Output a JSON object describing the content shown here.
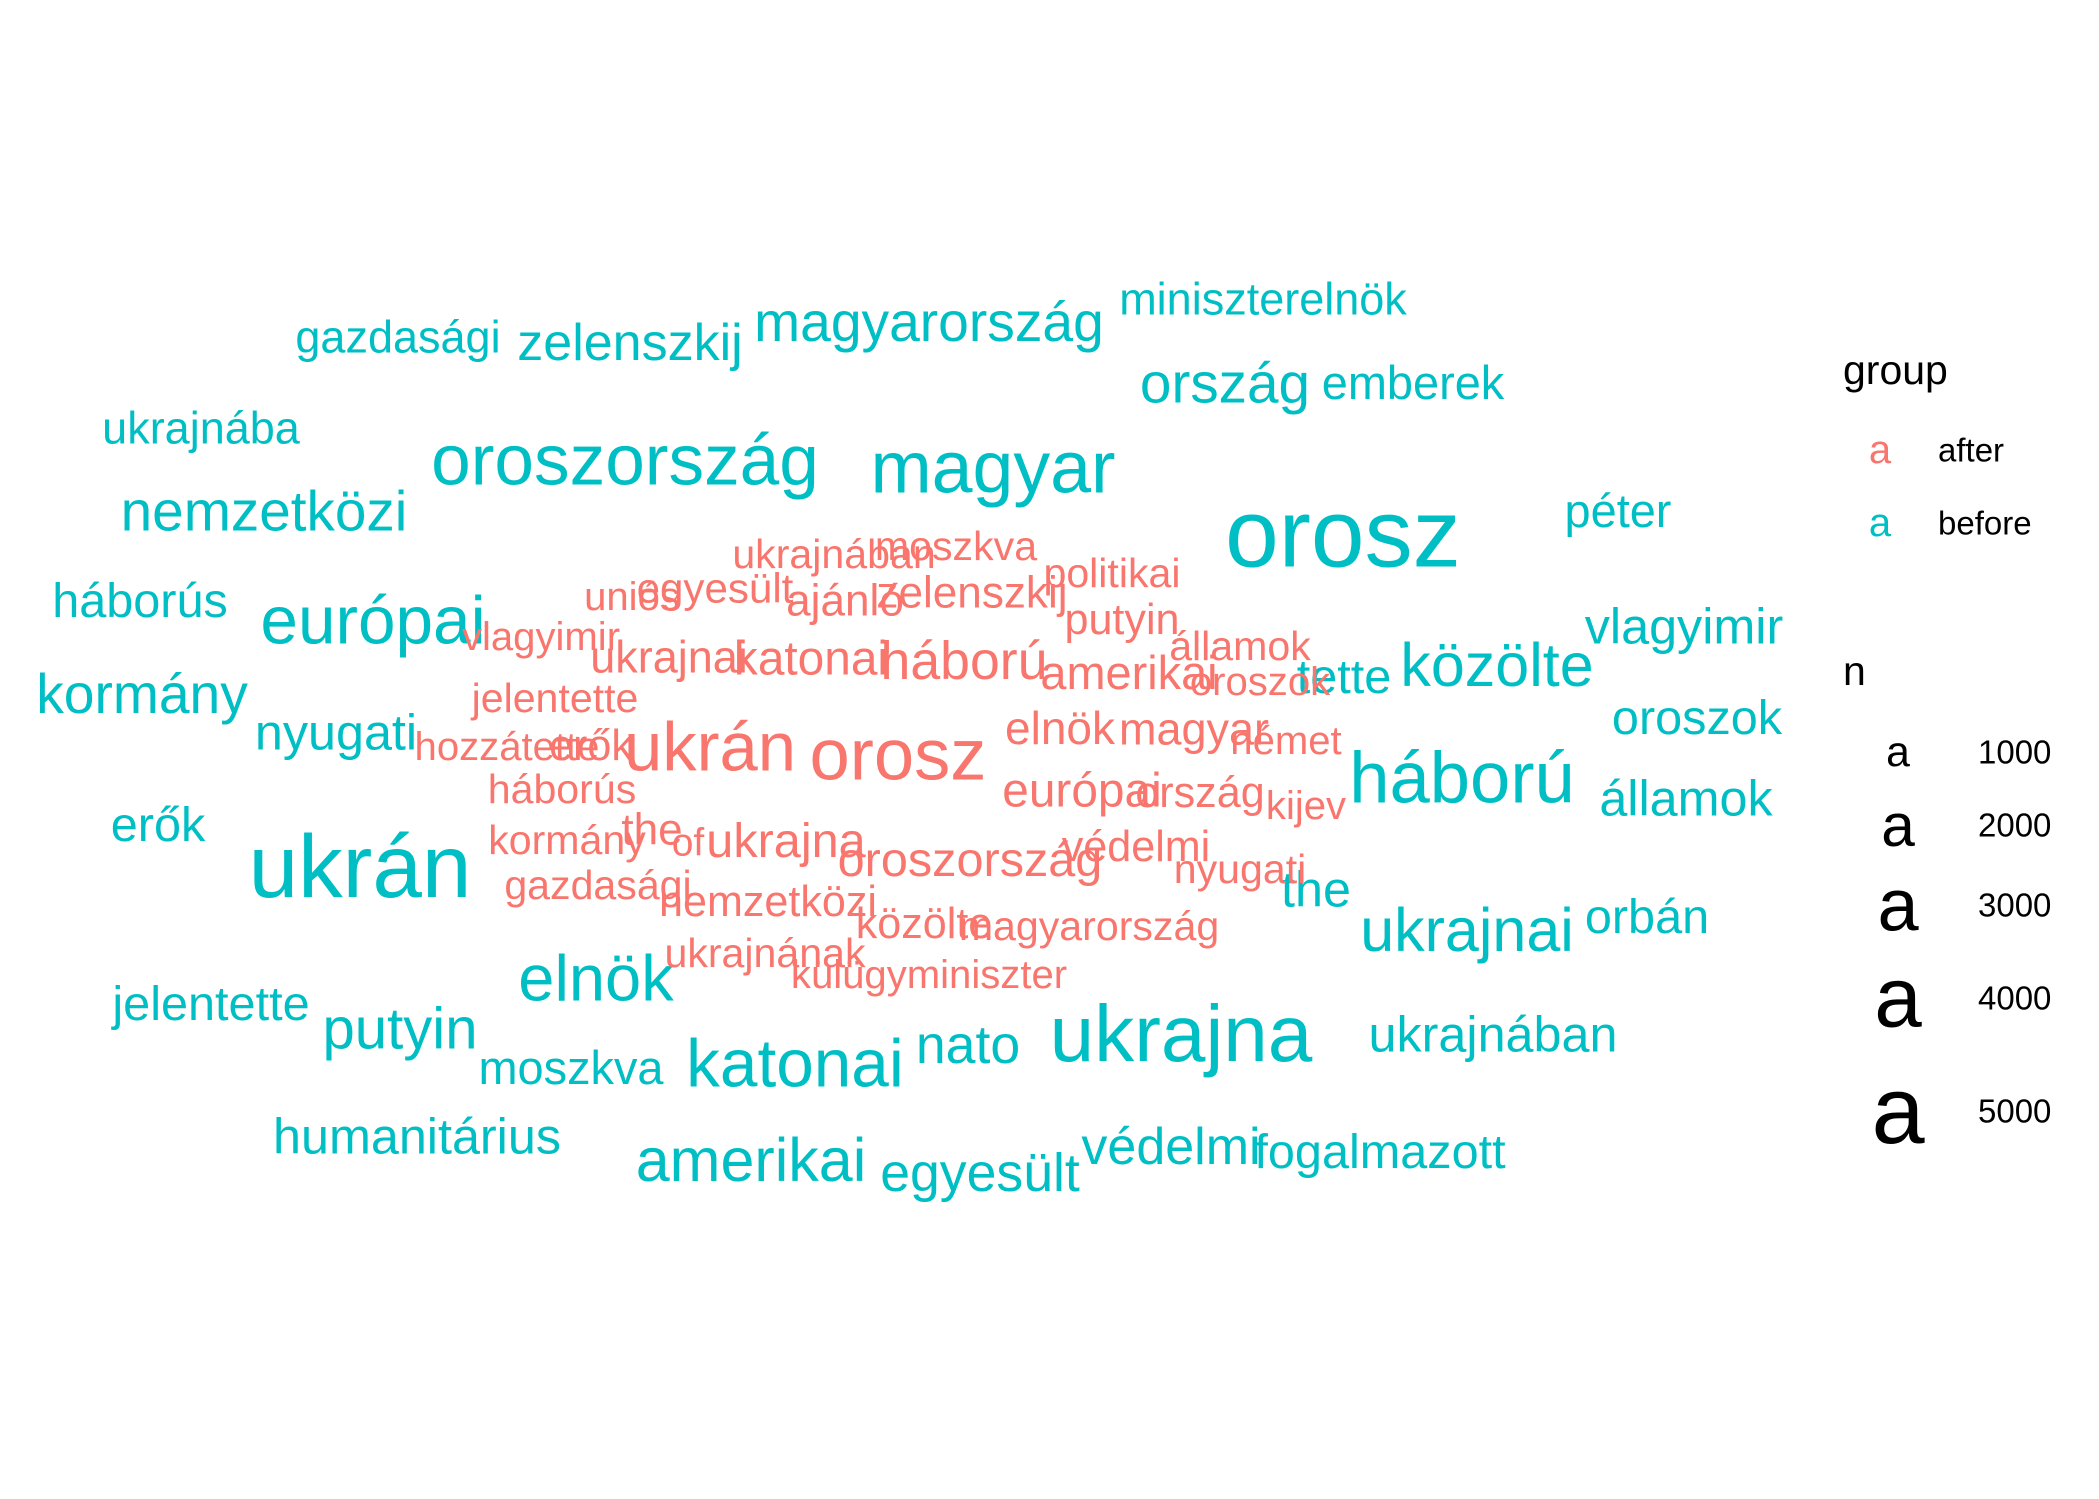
{
  "colors": {
    "after": "#F8766D",
    "before": "#00BFC4",
    "legend_key": "#000000",
    "background": "#FFFFFF"
  },
  "chart_data": {
    "type": "wordcloud",
    "size_variable": "n",
    "color_variable": "group",
    "words": [
      {
        "word": "orosz",
        "group": "before",
        "n": 5500
      },
      {
        "word": "ukrán",
        "group": "before",
        "n": 4700
      },
      {
        "word": "ukrajna",
        "group": "before",
        "n": 3800
      },
      {
        "word": "magyar",
        "group": "before",
        "n": 3200
      },
      {
        "word": "oroszország",
        "group": "before",
        "n": 3000
      },
      {
        "word": "háború",
        "group": "before",
        "n": 3100
      },
      {
        "word": "európai",
        "group": "before",
        "n": 2700
      },
      {
        "word": "katonai",
        "group": "before",
        "n": 2700
      },
      {
        "word": "elnök",
        "group": "before",
        "n": 2500
      },
      {
        "word": "amerikai",
        "group": "before",
        "n": 2200
      },
      {
        "word": "közölte",
        "group": "before",
        "n": 2200
      },
      {
        "word": "ukrajnai",
        "group": "before",
        "n": 2200
      },
      {
        "word": "putyin",
        "group": "before",
        "n": 2000
      },
      {
        "word": "nemzetközi",
        "group": "before",
        "n": 1900
      },
      {
        "word": "magyarország",
        "group": "before",
        "n": 1800
      },
      {
        "word": "ország",
        "group": "before",
        "n": 1900
      },
      {
        "word": "kormány",
        "group": "before",
        "n": 1800
      },
      {
        "word": "nato",
        "group": "before",
        "n": 1700
      },
      {
        "word": "egyesült",
        "group": "before",
        "n": 1700
      },
      {
        "word": "zelenszkij",
        "group": "before",
        "n": 1600
      },
      {
        "word": "védelmi",
        "group": "before",
        "n": 1600
      },
      {
        "word": "nyugati",
        "group": "before",
        "n": 1500
      },
      {
        "word": "humanitárius",
        "group": "before",
        "n": 1500
      },
      {
        "word": "ukrajnában",
        "group": "before",
        "n": 1500
      },
      {
        "word": "vlagyimir",
        "group": "before",
        "n": 1500
      },
      {
        "word": "államok",
        "group": "before",
        "n": 1500
      },
      {
        "word": "the",
        "group": "before",
        "n": 1500
      },
      {
        "word": "tette",
        "group": "before",
        "n": 1400
      },
      {
        "word": "háborús",
        "group": "before",
        "n": 1400
      },
      {
        "word": "jelentette",
        "group": "before",
        "n": 1400
      },
      {
        "word": "erők",
        "group": "before",
        "n": 1400
      },
      {
        "word": "fogalmazott",
        "group": "before",
        "n": 1400
      },
      {
        "word": "oroszok",
        "group": "before",
        "n": 1400
      },
      {
        "word": "orbán",
        "group": "before",
        "n": 1400
      },
      {
        "word": "moszkva",
        "group": "before",
        "n": 1300
      },
      {
        "word": "emberek",
        "group": "before",
        "n": 1300
      },
      {
        "word": "péter",
        "group": "before",
        "n": 1300
      },
      {
        "word": "gazdasági",
        "group": "before",
        "n": 1200
      },
      {
        "word": "ukrajnába",
        "group": "before",
        "n": 1200
      },
      {
        "word": "miniszterelnök",
        "group": "before",
        "n": 1200
      },
      {
        "word": "orosz",
        "group": "after",
        "n": 3100
      },
      {
        "word": "ukrán",
        "group": "after",
        "n": 2800
      },
      {
        "word": "háború",
        "group": "after",
        "n": 1700
      },
      {
        "word": "oroszország",
        "group": "after",
        "n": 1400
      },
      {
        "word": "ukrajna",
        "group": "after",
        "n": 1400
      },
      {
        "word": "katonai",
        "group": "after",
        "n": 1350
      },
      {
        "word": "európai",
        "group": "after",
        "n": 1350
      },
      {
        "word": "amerikai",
        "group": "after",
        "n": 1300
      },
      {
        "word": "elnök",
        "group": "after",
        "n": 1250
      },
      {
        "word": "magyar",
        "group": "after",
        "n": 1200
      },
      {
        "word": "ukrajnai",
        "group": "after",
        "n": 1200
      },
      {
        "word": "zelenszkij",
        "group": "after",
        "n": 1150
      },
      {
        "word": "ajánló",
        "group": "after",
        "n": 1150
      },
      {
        "word": "the",
        "group": "after",
        "n": 1150
      },
      {
        "word": "közölte",
        "group": "after",
        "n": 1100
      },
      {
        "word": "nemzetközi",
        "group": "after",
        "n": 1100
      },
      {
        "word": "védelmi",
        "group": "after",
        "n": 1100
      },
      {
        "word": "ország",
        "group": "after",
        "n": 1100
      },
      {
        "word": "putyin",
        "group": "after",
        "n": 1100
      },
      {
        "word": "erők",
        "group": "after",
        "n": 1100
      },
      {
        "word": "egyesült",
        "group": "after",
        "n": 1050
      },
      {
        "word": "magyarország",
        "group": "after",
        "n": 1000
      },
      {
        "word": "politikai",
        "group": "after",
        "n": 1000
      },
      {
        "word": "nyugati",
        "group": "after",
        "n": 1000
      },
      {
        "word": "gazdasági",
        "group": "after",
        "n": 1000
      },
      {
        "word": "kormány",
        "group": "after",
        "n": 1000
      },
      {
        "word": "háborús",
        "group": "after",
        "n": 1000
      },
      {
        "word": "jelentette",
        "group": "after",
        "n": 1000
      },
      {
        "word": "ukrajnának",
        "group": "after",
        "n": 1000
      },
      {
        "word": "ukrajnában",
        "group": "after",
        "n": 1000
      },
      {
        "word": "moszkva",
        "group": "after",
        "n": 1000
      },
      {
        "word": "államok",
        "group": "after",
        "n": 1000
      },
      {
        "word": "német",
        "group": "after",
        "n": 950
      },
      {
        "word": "oroszok",
        "group": "after",
        "n": 950
      },
      {
        "word": "kijev",
        "group": "after",
        "n": 950
      },
      {
        "word": "uniós",
        "group": "after",
        "n": 950
      },
      {
        "word": "vlagyimir",
        "group": "after",
        "n": 950
      },
      {
        "word": "hozzátette",
        "group": "after",
        "n": 950
      },
      {
        "word": "külügyminiszter",
        "group": "after",
        "n": 950
      },
      {
        "word": "of",
        "group": "after",
        "n": 900
      }
    ],
    "legend": {
      "group": {
        "title": "group",
        "key_glyph": "a",
        "items": [
          {
            "label": "after",
            "group": "after"
          },
          {
            "label": "before",
            "group": "before"
          }
        ]
      },
      "size": {
        "title": "n",
        "key_glyph": "a",
        "items": [
          {
            "label": "1000",
            "n": 1000
          },
          {
            "label": "2000",
            "n": 2000
          },
          {
            "label": "3000",
            "n": 3000
          },
          {
            "label": "4000",
            "n": 4000
          },
          {
            "label": "5000",
            "n": 5000
          }
        ]
      }
    }
  }
}
